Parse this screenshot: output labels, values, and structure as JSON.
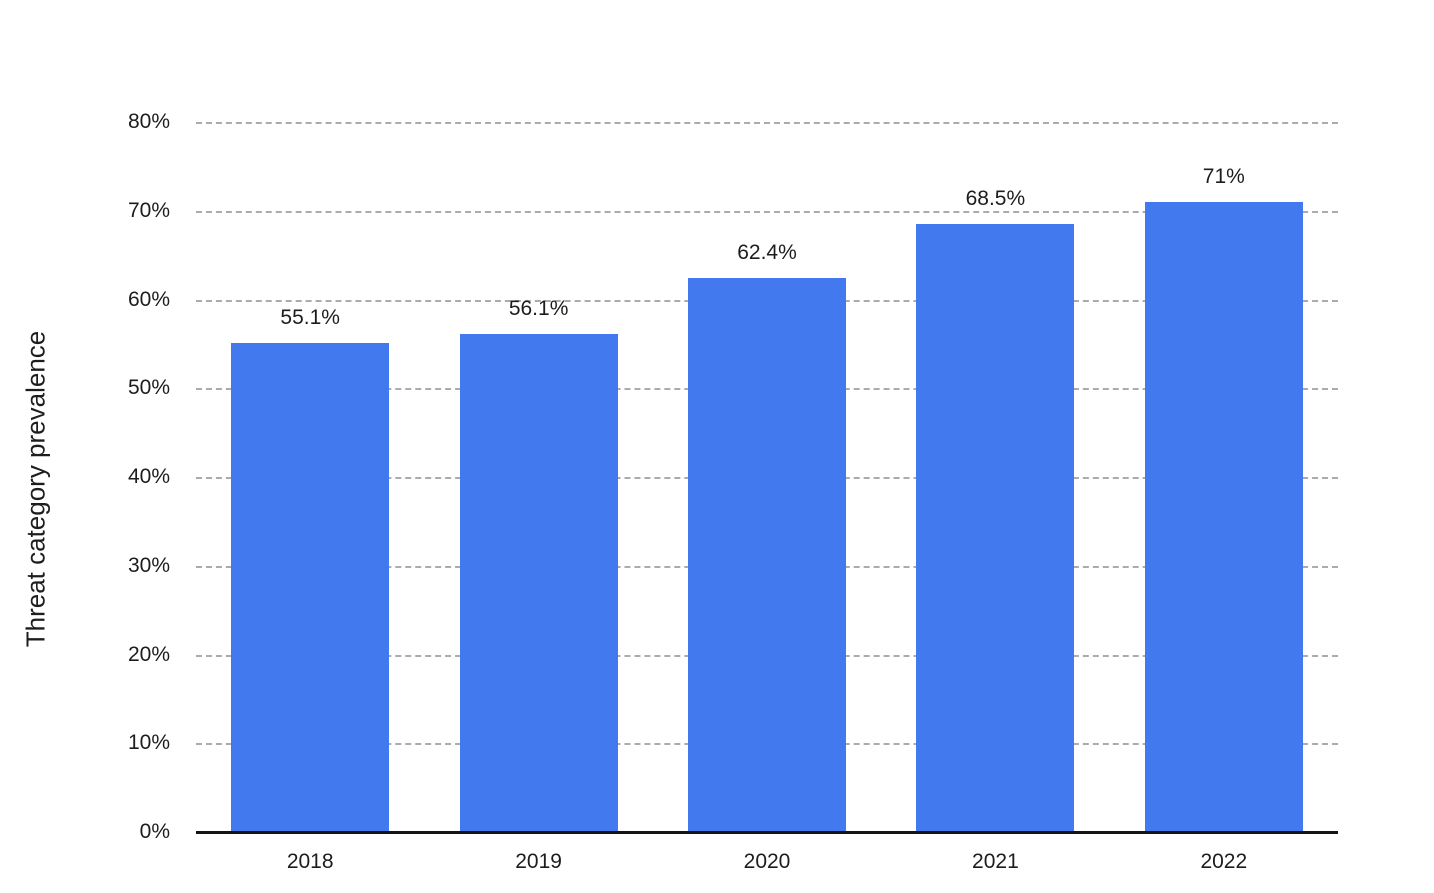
{
  "chart_data": {
    "type": "bar",
    "title": "",
    "xlabel": "",
    "ylabel": "Threat category prevalence",
    "categories": [
      "2018",
      "2019",
      "2020",
      "2021",
      "2022"
    ],
    "values": [
      55.1,
      56.1,
      62.4,
      68.5,
      71
    ],
    "value_labels": [
      "55.1%",
      "56.1%",
      "62.4%",
      "68.5%",
      "71%"
    ],
    "ylim": [
      0,
      80
    ],
    "ytick_step": 10,
    "ytick_labels": [
      "0%",
      "10%",
      "20%",
      "30%",
      "40%",
      "50%",
      "60%",
      "70%",
      "80%"
    ],
    "grid": "horizontal-dashed",
    "legend": "none",
    "bar_color": "#4379ee",
    "text_color": "#1d1d1d",
    "background_color": "#ffffff"
  }
}
